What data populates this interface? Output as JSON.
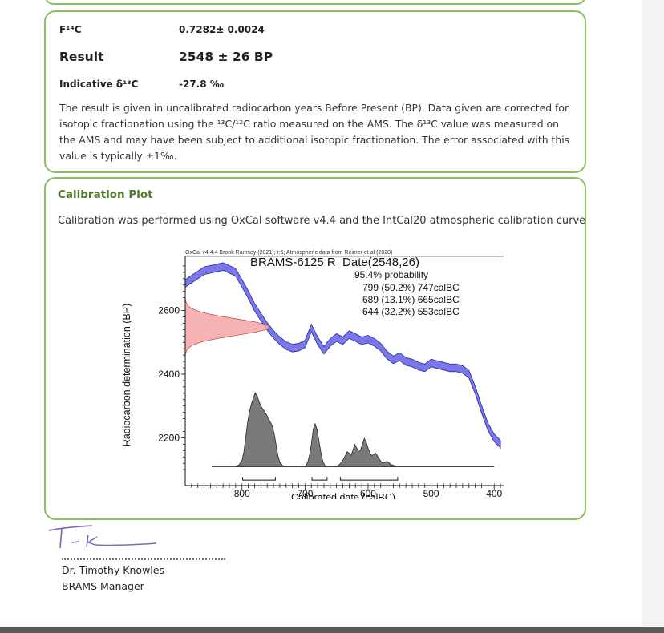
{
  "results": {
    "f14c_label": "F¹⁴C",
    "f14c_value": "0.7282± 0.0024",
    "result_label": "Result",
    "result_value": "2548 ± 26 BP",
    "d13c_label": "Indicative δ¹³C",
    "d13c_value": "-27.8 ‰",
    "explanation": "The result is given in uncalibrated radiocarbon years Before Present (BP). Data given are corrected for isotopic fractionation using the ¹³C/¹²C ratio measured on the AMS. The δ¹³C value was measured on the AMS and may have been subject to additional isotopic fractionation. The error associated with this value is typically ±1‰."
  },
  "calibration": {
    "title": "Calibration Plot",
    "description": "Calibration was performed using OxCal software v4.4 and the IntCal20 atmospheric calibration curve"
  },
  "chart_data": {
    "type": "area",
    "header": "OxCal v4.4.4 Bronk Ramsey (2021); r:5; Atmospheric data from Reimer et al (2020)",
    "title": "BRAMS-6125 R_Date(2548,26)",
    "probability_heading": "95.4% probability",
    "ranges": [
      {
        "from": 799,
        "to": 747,
        "label": "799 (50.2%) 747calBC"
      },
      {
        "from": 689,
        "to": 665,
        "label": "689 (13.1%) 665calBC"
      },
      {
        "from": 644,
        "to": 553,
        "label": "644 (32.2%) 553calBC"
      }
    ],
    "xlabel": "Calibrated date (calBC)",
    "ylabel": "Radiocarbon determination (BP)",
    "x_ticks": [
      800,
      700,
      600,
      500,
      400
    ],
    "y_ticks": [
      2600,
      2400,
      2200
    ],
    "xlim": [
      890,
      385
    ],
    "ylim": [
      2050,
      2770
    ],
    "measurement": {
      "mean": 2548,
      "sigma": 26
    },
    "calibration_curve": {
      "x": [
        890,
        860,
        830,
        810,
        800,
        790,
        780,
        770,
        760,
        750,
        740,
        730,
        720,
        710,
        700,
        690,
        680,
        670,
        660,
        650,
        640,
        630,
        620,
        610,
        600,
        590,
        580,
        570,
        560,
        550,
        540,
        530,
        520,
        510,
        500,
        490,
        480,
        470,
        460,
        450,
        440,
        430,
        420,
        410,
        400,
        390
      ],
      "y": [
        2685,
        2725,
        2738,
        2720,
        2685,
        2650,
        2610,
        2580,
        2550,
        2525,
        2505,
        2490,
        2482,
        2485,
        2495,
        2545,
        2505,
        2475,
        2500,
        2515,
        2505,
        2525,
        2515,
        2505,
        2510,
        2500,
        2485,
        2460,
        2445,
        2455,
        2440,
        2435,
        2425,
        2420,
        2435,
        2430,
        2425,
        2420,
        2420,
        2415,
        2400,
        2350,
        2290,
        2235,
        2200,
        2180
      ],
      "error": 12
    },
    "posterior": {
      "x": [
        810,
        805,
        800,
        797,
        794,
        791,
        788,
        785,
        782,
        779,
        776,
        773,
        770,
        767,
        764,
        761,
        758,
        755,
        752,
        749,
        746,
        743,
        740,
        735,
        730,
        720,
        710,
        700,
        696,
        693,
        690,
        687,
        684,
        681,
        678,
        675,
        672,
        669,
        666,
        663,
        660,
        655,
        650,
        645,
        642,
        639,
        636,
        633,
        630,
        627,
        624,
        621,
        618,
        615,
        612,
        609,
        606,
        603,
        600,
        597,
        594,
        591,
        588,
        585,
        582,
        579,
        576,
        573,
        570,
        567,
        564,
        561,
        558,
        555,
        552,
        549,
        546,
        540,
        530,
        520,
        500,
        480,
        460,
        440,
        420,
        400
      ],
      "p": [
        0,
        0.02,
        0.08,
        0.2,
        0.4,
        0.6,
        0.75,
        0.85,
        0.93,
        1.0,
        0.96,
        0.88,
        0.82,
        0.78,
        0.74,
        0.7,
        0.65,
        0.6,
        0.55,
        0.45,
        0.3,
        0.15,
        0.06,
        0.01,
        0,
        0,
        0,
        0,
        0.05,
        0.15,
        0.3,
        0.5,
        0.58,
        0.5,
        0.35,
        0.2,
        0.08,
        0.02,
        0,
        0,
        0,
        0,
        0,
        0.03,
        0.06,
        0.1,
        0.15,
        0.2,
        0.18,
        0.15,
        0.22,
        0.3,
        0.25,
        0.2,
        0.22,
        0.3,
        0.38,
        0.33,
        0.25,
        0.18,
        0.15,
        0.16,
        0.18,
        0.14,
        0.1,
        0.06,
        0.05,
        0.06,
        0.07,
        0.05,
        0.03,
        0.02,
        0.01,
        0.01,
        0,
        0,
        0,
        0,
        0,
        0,
        0,
        0,
        0,
        0,
        0,
        0
      ]
    },
    "colors": {
      "curve_fill": "#7878e8",
      "curve_edge": "#2a2aa0",
      "gaussian_fill": "#f4a6a6",
      "gaussian_edge": "#b03030",
      "posterior_fill": "#7a7a7a",
      "posterior_edge": "#222222"
    }
  },
  "signature": {
    "name": "Dr. Timothy Knowles",
    "role": "BRAMS Manager"
  }
}
